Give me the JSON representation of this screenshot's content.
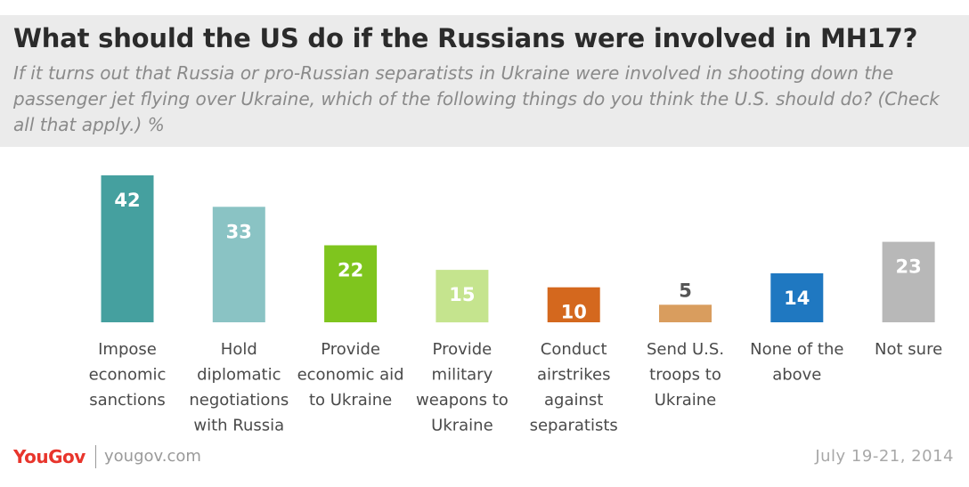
{
  "header": {
    "title": "What should the US do if the Russians were involved in MH17?",
    "subtitle": "If it turns out that Russia or pro-Russian separatists in Ukraine were involved in shooting down the passenger jet flying over Ukraine, which of the following things do you think the U.S. should do? (Check all that apply.) %"
  },
  "footer": {
    "brand": "YouGov",
    "site": "yougov.com",
    "date": "July 19-21, 2014"
  },
  "chart_data": {
    "type": "bar",
    "title": "What should the US do if the Russians were involved in MH17?",
    "xlabel": "",
    "ylabel": "%",
    "ylim": [
      0,
      45
    ],
    "grid": false,
    "categories": [
      [
        "Impose",
        "economic",
        "sanctions"
      ],
      [
        "Hold",
        "diplomatic",
        "negotiations",
        "with Russia"
      ],
      [
        "Provide",
        "economic aid",
        "to Ukraine"
      ],
      [
        "Provide",
        "military",
        "weapons to",
        "Ukraine"
      ],
      [
        "Conduct",
        "airstrikes",
        "against",
        "separatists"
      ],
      [
        "Send U.S.",
        "troops to",
        "Ukraine"
      ],
      [
        "None of the",
        "above"
      ],
      [
        "Not sure"
      ]
    ],
    "values": [
      42,
      33,
      22,
      15,
      10,
      5,
      14,
      23
    ],
    "colors": [
      "#45a09f",
      "#8ac3c4",
      "#7fc51e",
      "#c5e48e",
      "#d4681e",
      "#d99d5e",
      "#1f78c1",
      "#b8b8b8"
    ],
    "label_colors": [
      "#ffffff",
      "#ffffff",
      "#ffffff",
      "#ffffff",
      "#ffffff",
      "#555555",
      "#ffffff",
      "#ffffff"
    ]
  }
}
